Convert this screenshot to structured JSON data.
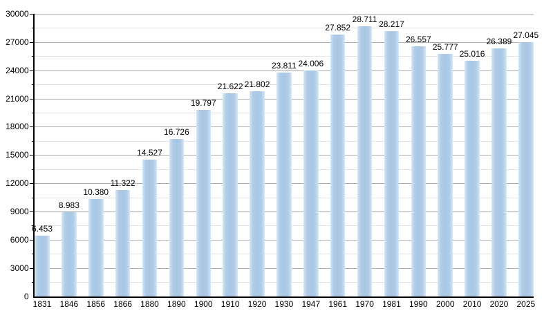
{
  "chart_data": {
    "type": "bar",
    "title": "",
    "xlabel": "",
    "ylabel": "",
    "categories": [
      "1831",
      "1846",
      "1856",
      "1866",
      "1880",
      "1890",
      "1900",
      "1910",
      "1920",
      "1930",
      "1947",
      "1961",
      "1970",
      "1981",
      "1990",
      "2000",
      "2010",
      "2020",
      "2025"
    ],
    "values": [
      6453,
      8983,
      10380,
      11322,
      14527,
      16726,
      19797,
      21622,
      21802,
      23811,
      24006,
      27852,
      28711,
      28217,
      26557,
      25777,
      25016,
      26389,
      27045
    ],
    "value_labels": [
      "6.453",
      "8.983",
      "10.380",
      "11.322",
      "14.527",
      "16.726",
      "19.797",
      "21.622",
      "21.802",
      "23.811",
      "24.006",
      "27.852",
      "28.711",
      "28.217",
      "26.557",
      "25.777",
      "25.016",
      "26.389",
      "27.045"
    ],
    "ylim": [
      0,
      30000
    ],
    "y_major_step": 3000,
    "y_minor_step": 1500,
    "y_tick_labels": [
      "0",
      "3000",
      "6000",
      "9000",
      "12000",
      "15000",
      "18000",
      "21000",
      "24000",
      "27000",
      "30000"
    ],
    "grid": "horizontal-on",
    "legend_position": "none",
    "colors": {
      "bar_center": "#a9c7e4",
      "bar_edge": "#d9e6f3",
      "major_grid": "#ababab",
      "minor_grid": "#e2e2e2",
      "axis": "#000000",
      "text": "#000000",
      "background": "#ffffff"
    }
  }
}
